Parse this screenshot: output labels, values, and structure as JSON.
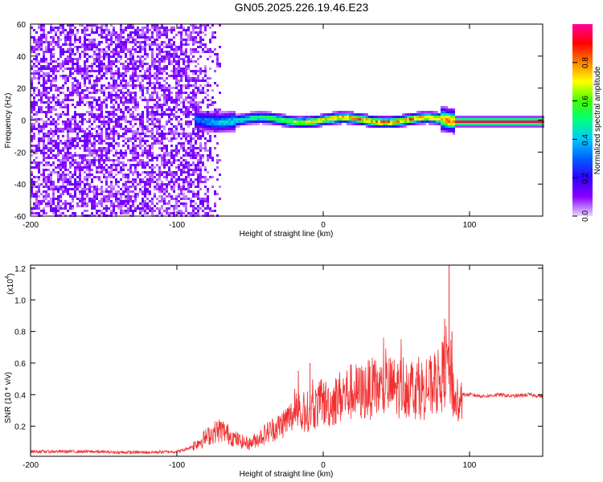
{
  "chart_data": [
    {
      "type": "heatmap",
      "title": "GN05.2025.226.19.46.E23",
      "xlabel": "Height of straight line (km)",
      "ylabel": "Frequency (Hz)",
      "xlim": [
        -200,
        150
      ],
      "ylim": [
        -60,
        60
      ],
      "x_ticks": [
        "-200",
        "-100",
        "0",
        "100"
      ],
      "y_ticks": [
        "60",
        "40",
        "20",
        "0",
        "-20",
        "-40",
        "-60"
      ],
      "colorbar": {
        "label": "Normalized spectral amplitude",
        "range": [
          0,
          1
        ],
        "ticks": [
          "0.0",
          "0.2",
          "0.4",
          "0.6",
          "0.8"
        ],
        "colormap": [
          "#e8d8ff",
          "#8a00ff",
          "#3000ff",
          "#0060ff",
          "#00c8ff",
          "#00ff80",
          "#40ff00",
          "#ffff00",
          "#ff8000",
          "#ff0000",
          "#ff00a0"
        ]
      },
      "regions": [
        {
          "x_range": [
            -200,
            -70
          ],
          "description_values": "broadband noise across all frequencies, amplitude ~0.05-0.2"
        },
        {
          "x_range": [
            -88,
            90
          ],
          "peak_frequency_hz": 0,
          "band_halfwidth_hz": 7,
          "peak_amplitude": [
            0.3,
            0.9
          ]
        },
        {
          "x_range": [
            90,
            150
          ],
          "peak_frequency_hz": -1,
          "band_halfwidth_hz": 3,
          "peak_amplitude": 0.95
        }
      ]
    },
    {
      "type": "line",
      "title": "",
      "xlabel": "Height of straight line (km)",
      "ylabel": "SNR (10 * v/v)",
      "y_multiplier": "(x10",
      "y_multiplier_exp": "4",
      "x_ticks": [
        "-200",
        "-100",
        "0",
        "100"
      ],
      "y_ticks": [
        "1.2",
        "1.0",
        "0.8",
        "0.6",
        "0.4",
        "0.2"
      ],
      "xlim": [
        -200,
        150
      ],
      "ylim": [
        0.01,
        1.22
      ],
      "color": "#f03030",
      "series": [
        {
          "x": [
            -200,
            -180,
            -160,
            -140,
            -120,
            -100,
            -95,
            -90,
            -85,
            -80,
            -75,
            -70,
            -65,
            -60,
            -55,
            -50,
            -45,
            -40,
            -35,
            -30,
            -25,
            -20,
            -15,
            -10,
            -5,
            0,
            5,
            10,
            15,
            20,
            25,
            30,
            35,
            40,
            45,
            50,
            55,
            60,
            65,
            70,
            75,
            80,
            85,
            87,
            90,
            92,
            95,
            100,
            110,
            120,
            130,
            140,
            150
          ],
          "values": [
            0.04,
            0.04,
            0.04,
            0.035,
            0.035,
            0.04,
            0.05,
            0.07,
            0.1,
            0.13,
            0.16,
            0.18,
            0.15,
            0.12,
            0.1,
            0.09,
            0.12,
            0.15,
            0.18,
            0.2,
            0.24,
            0.27,
            0.25,
            0.3,
            0.32,
            0.35,
            0.34,
            0.38,
            0.4,
            0.42,
            0.41,
            0.43,
            0.44,
            0.43,
            0.45,
            0.44,
            0.46,
            0.45,
            0.44,
            0.43,
            0.46,
            0.48,
            0.62,
            0.55,
            0.35,
            0.38,
            0.4,
            0.4,
            0.39,
            0.4,
            0.39,
            0.4,
            0.39
          ],
          "spikes": [
            {
              "x": -17,
              "y": 0.55
            },
            {
              "x": -9,
              "y": 0.6
            },
            {
              "x": 83,
              "y": 0.88
            },
            {
              "x": 86,
              "y": 1.22
            },
            {
              "x": 88,
              "y": 0.8
            }
          ]
        }
      ]
    }
  ]
}
